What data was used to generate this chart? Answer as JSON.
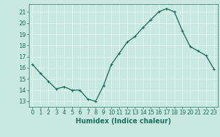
{
  "x": [
    0,
    1,
    2,
    3,
    4,
    5,
    6,
    7,
    8,
    9,
    10,
    11,
    12,
    13,
    14,
    15,
    16,
    17,
    18,
    19,
    20,
    21,
    22,
    23
  ],
  "y": [
    16.3,
    15.5,
    14.8,
    14.1,
    14.3,
    14.0,
    14.0,
    13.2,
    13.0,
    14.4,
    16.3,
    17.3,
    18.3,
    18.8,
    19.6,
    20.3,
    21.0,
    21.3,
    21.0,
    19.3,
    17.9,
    17.5,
    17.1,
    15.9
  ],
  "line_color": "#1a7060",
  "marker": "+",
  "marker_size": 3,
  "bg_color": "#c8e8e0",
  "grid_color": "#e8f8f4",
  "xlabel": "Humidex (Indice chaleur)",
  "ylim": [
    12.5,
    21.7
  ],
  "xlim": [
    -0.5,
    23.5
  ],
  "yticks": [
    13,
    14,
    15,
    16,
    17,
    18,
    19,
    20,
    21
  ],
  "xticks": [
    0,
    1,
    2,
    3,
    4,
    5,
    6,
    7,
    8,
    9,
    10,
    11,
    12,
    13,
    14,
    15,
    16,
    17,
    18,
    19,
    20,
    21,
    22,
    23
  ],
  "tick_color": "#1a7060",
  "xlabel_fontsize": 7,
  "tick_fontsize": 6,
  "line_width": 1.0
}
